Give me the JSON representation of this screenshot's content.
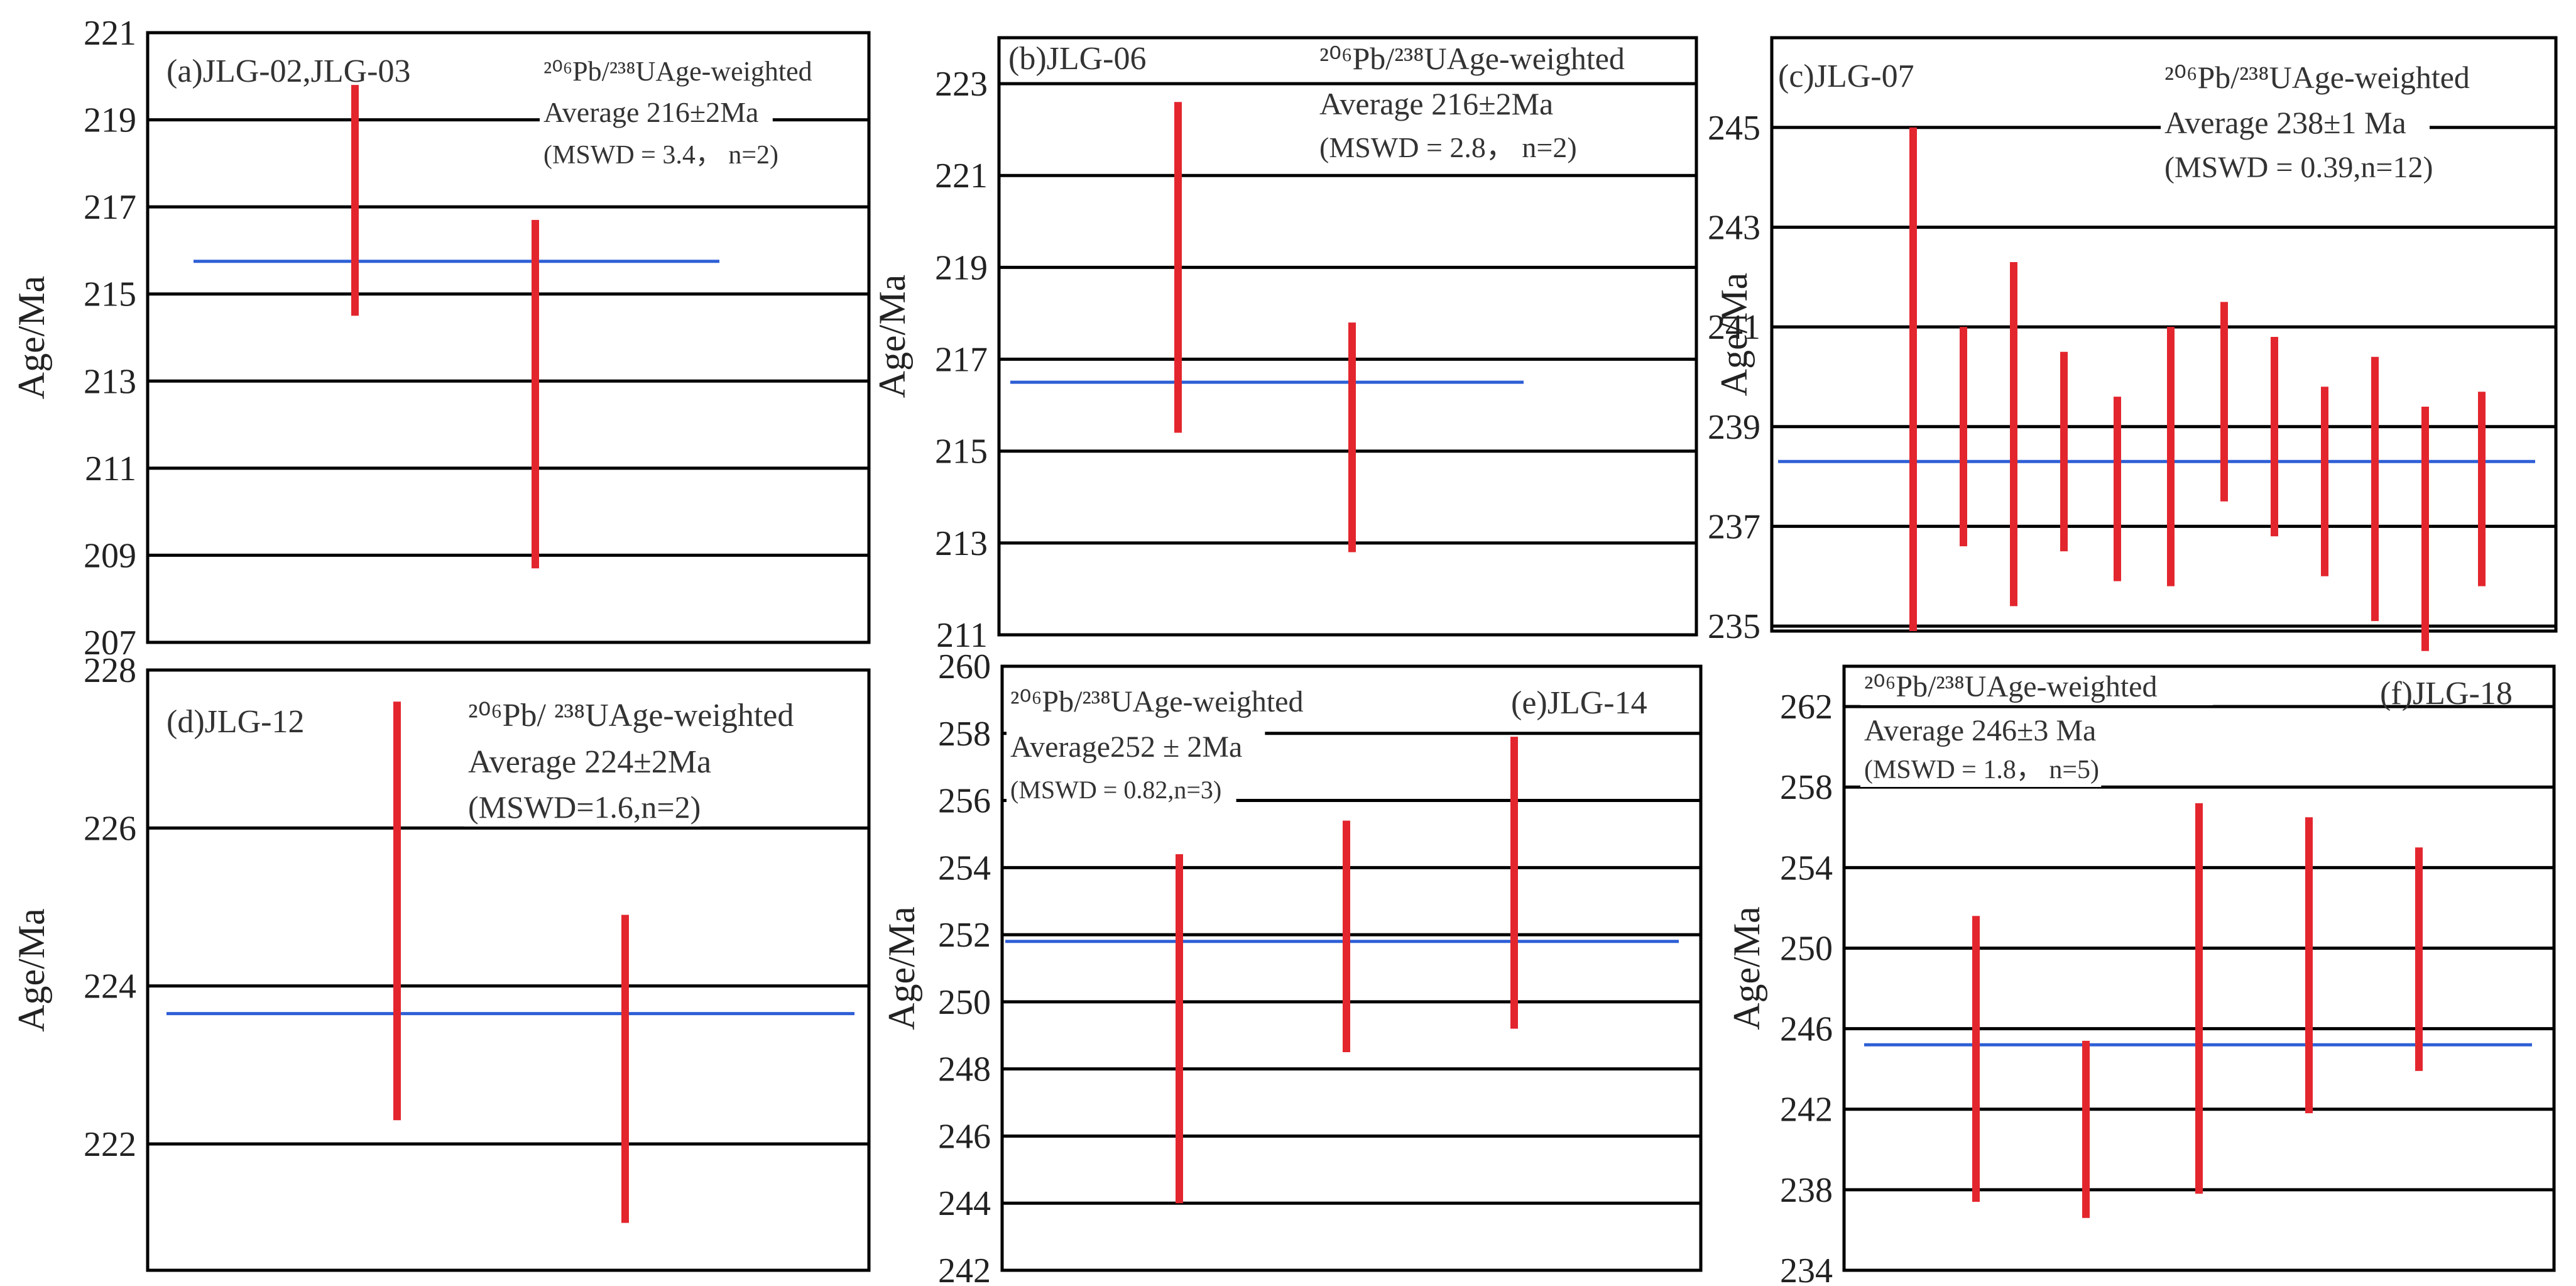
{
  "figure": {
    "ylabel": "Age/Ma",
    "colors": {
      "error_bar": "#e3262e",
      "weighted_mean_line": "#2e5fd6",
      "grid": "#000000",
      "text": "#333333"
    }
  },
  "chart_data": [
    {
      "type": "errorbar",
      "panel_label": "(a)JLG-02,JLG-03",
      "annotation_lines": [
        "²⁰⁶Pb/²³⁸UAge-weighted",
        "Average 216±2Ma",
        "(MSWD = 3.4， n=2)"
      ],
      "ylabel": "Age/Ma",
      "ylim": [
        207,
        221
      ],
      "yticks": [
        207,
        209,
        211,
        213,
        215,
        217,
        219,
        221
      ],
      "weighted_mean": 215.75,
      "points": [
        {
          "low": 214.5,
          "high": 219.8
        },
        {
          "low": 208.7,
          "high": 216.7
        }
      ]
    },
    {
      "type": "errorbar",
      "panel_label": "(b)JLG-06",
      "annotation_lines": [
        "²⁰⁶Pb/²³⁸UAge-weighted",
        "Average 216±2Ma",
        "(MSWD = 2.8， n=2)"
      ],
      "ylabel": "Age/Ma",
      "ylim": [
        211,
        224
      ],
      "yticks": [
        211,
        213,
        215,
        217,
        219,
        221,
        223
      ],
      "weighted_mean": 216.5,
      "points": [
        {
          "low": 215.4,
          "high": 222.6
        },
        {
          "low": 212.8,
          "high": 217.8
        }
      ]
    },
    {
      "type": "errorbar",
      "panel_label": "(c)JLG-07",
      "annotation_lines": [
        "²⁰⁶Pb/²³⁸UAge-weighted",
        "Average 238±1 Ma",
        "(MSWD = 0.39,n=12)"
      ],
      "ylabel": "Age/Ma",
      "ylim": [
        234.9,
        246.8
      ],
      "yticks": [
        235,
        237,
        239,
        241,
        243,
        245
      ],
      "weighted_mean": 238.3,
      "points": [
        {
          "low": 234.9,
          "high": 245.0
        },
        {
          "low": 236.6,
          "high": 241.0
        },
        {
          "low": 235.4,
          "high": 242.3
        },
        {
          "low": 236.5,
          "high": 240.5
        },
        {
          "low": 235.9,
          "high": 239.6
        },
        {
          "low": 235.8,
          "high": 241.0
        },
        {
          "low": 237.5,
          "high": 241.5
        },
        {
          "low": 236.8,
          "high": 240.8
        },
        {
          "low": 236.0,
          "high": 239.8
        },
        {
          "low": 235.1,
          "high": 240.4
        },
        {
          "low": 234.5,
          "high": 239.4
        },
        {
          "low": 235.8,
          "high": 239.7
        }
      ]
    },
    {
      "type": "errorbar",
      "panel_label": "(d)JLG-12",
      "annotation_lines": [
        "²⁰⁶Pb/ ²³⁸UAge-weighted",
        "Average 224±2Ma",
        "(MSWD=1.6,n=2)"
      ],
      "ylabel": "Age/Ma",
      "ylim": [
        220.4,
        228
      ],
      "yticks": [
        222,
        224,
        226,
        228
      ],
      "weighted_mean": 223.65,
      "points": [
        {
          "low": 222.3,
          "high": 227.6
        },
        {
          "low": 221.0,
          "high": 224.9
        }
      ]
    },
    {
      "type": "errorbar",
      "panel_label": "(e)JLG-14",
      "annotation_lines": [
        "²⁰⁶Pb/²³⁸UAge-weighted",
        "Average252 ± 2Ma",
        "(MSWD = 0.82,n=3)"
      ],
      "ylabel": "Age/Ma",
      "ylim": [
        242,
        260
      ],
      "yticks": [
        242,
        244,
        246,
        248,
        250,
        252,
        254,
        256,
        258,
        260
      ],
      "weighted_mean": 251.8,
      "points": [
        {
          "low": 244.0,
          "high": 254.4
        },
        {
          "low": 248.5,
          "high": 255.4
        },
        {
          "low": 249.2,
          "high": 257.9
        }
      ]
    },
    {
      "type": "errorbar",
      "panel_label": "(f)JLG-18",
      "annotation_lines": [
        "²⁰⁶Pb/²³⁸UAge-weighted",
        "Average 246±3  Ma",
        "(MSWD = 1.8， n=5)"
      ],
      "ylabel": "Age/Ma",
      "ylim": [
        234,
        264
      ],
      "yticks": [
        234,
        238,
        242,
        246,
        250,
        254,
        258,
        262
      ],
      "weighted_mean": 245.2,
      "points": [
        {
          "low": 237.4,
          "high": 251.6
        },
        {
          "low": 236.6,
          "high": 245.4
        },
        {
          "low": 237.8,
          "high": 257.2
        },
        {
          "low": 241.8,
          "high": 256.5
        },
        {
          "low": 243.9,
          "high": 255.0
        }
      ]
    }
  ]
}
